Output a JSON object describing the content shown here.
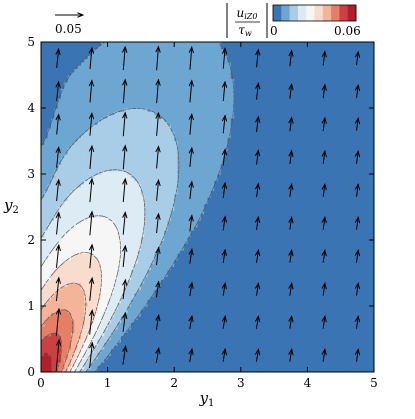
{
  "chart_data": {
    "type": "heatmap",
    "plot": "contour + quiver",
    "title": "",
    "xlabel": {
      "base": "y",
      "sub": "1"
    },
    "ylabel": {
      "base": "y",
      "sub": "2"
    },
    "xlim": [
      0,
      5
    ],
    "ylim": [
      0,
      5
    ],
    "xticks": [
      "0",
      "1",
      "2",
      "3",
      "4",
      "5"
    ],
    "yticks": [
      "0",
      "1",
      "2",
      "3",
      "4",
      "5"
    ],
    "grid": false,
    "colorbar": {
      "label": {
        "num_base": "u",
        "num_sub": "iZ0",
        "den_base": "τ",
        "den_sub": "w"
      },
      "min": 0,
      "max": 0.06,
      "tick_labels": [
        "0",
        "0.06"
      ],
      "placement": "top-right",
      "colors": [
        "#3a74b3",
        "#6ea6d2",
        "#a9cde6",
        "#dcebf4",
        "#f6f6f6",
        "#f8dccd",
        "#f4b49a",
        "#e57f66",
        "#cb4143",
        "#b0202c"
      ]
    },
    "contour_levels": [
      0.006,
      0.012,
      0.018,
      0.024,
      0.03,
      0.036,
      0.042,
      0.048,
      0.054
    ],
    "reference_vector": {
      "label": "0.05",
      "magnitude": 0.05,
      "placement": "top-left"
    },
    "vector_grid": {
      "x": [
        0.25,
        0.75,
        1.25,
        1.75,
        2.25,
        2.75,
        3.25,
        3.75,
        4.25,
        4.75
      ],
      "y": [
        0.25,
        0.75,
        1.25,
        1.75,
        2.25,
        2.75,
        3.25,
        3.75,
        4.25,
        4.75
      ]
    }
  }
}
